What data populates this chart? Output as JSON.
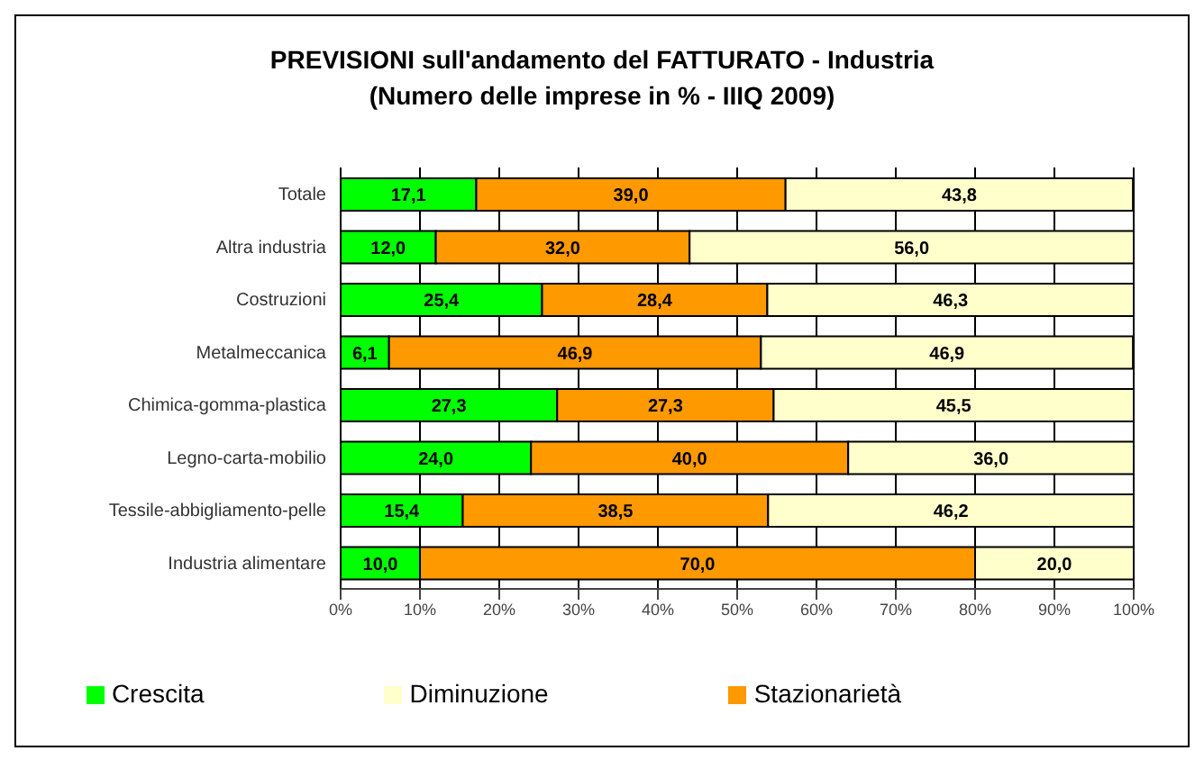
{
  "chart_data": {
    "type": "bar",
    "orientation": "horizontal",
    "stacked": true,
    "title": "PREVISIONI sull'andamento del FATTURATO - Industria",
    "subtitle": "(Numero delle imprese in % - IIIQ 2009)",
    "categories": [
      "Totale",
      "Altra industria",
      "Costruzioni",
      "Metalmeccanica",
      "Chimica-gomma-plastica",
      "Legno-carta-mobilio",
      "Tessile-abbigliamento-pelle",
      "Industria alimentare"
    ],
    "series": [
      {
        "name": "Crescita",
        "color": "#00ff00",
        "values": [
          17.1,
          12.0,
          25.4,
          6.1,
          27.3,
          24.0,
          15.4,
          10.0
        ],
        "value_labels": [
          "17,1",
          "12,0",
          "25,4",
          "6,1",
          "27,3",
          "24,0",
          "15,4",
          "10,0"
        ]
      },
      {
        "name": "Stazionarietà",
        "color": "#ff9900",
        "values": [
          39.0,
          32.0,
          28.4,
          46.9,
          27.3,
          40.0,
          38.5,
          70.0
        ],
        "value_labels": [
          "39,0",
          "32,0",
          "28,4",
          "46,9",
          "27,3",
          "40,0",
          "38,5",
          "70,0"
        ]
      },
      {
        "name": "Diminuzione",
        "color": "#ffffcc",
        "values": [
          43.8,
          56.0,
          46.3,
          46.9,
          45.5,
          36.0,
          46.2,
          20.0
        ],
        "value_labels": [
          "43,8",
          "56,0",
          "46,3",
          "46,9",
          "45,5",
          "36,0",
          "46,2",
          "20,0"
        ]
      }
    ],
    "xlim": [
      0,
      100
    ],
    "xticks": [
      {
        "value": 0,
        "label": "0%"
      },
      {
        "value": 10,
        "label": "10%"
      },
      {
        "value": 20,
        "label": "20%"
      },
      {
        "value": 30,
        "label": "30%"
      },
      {
        "value": 40,
        "label": "40%"
      },
      {
        "value": 50,
        "label": "50%"
      },
      {
        "value": 60,
        "label": "60%"
      },
      {
        "value": 70,
        "label": "70%"
      },
      {
        "value": 80,
        "label": "80%"
      },
      {
        "value": 90,
        "label": "90%"
      },
      {
        "value": 100,
        "label": "100%"
      }
    ],
    "grid": "x",
    "legend": "bottom"
  }
}
